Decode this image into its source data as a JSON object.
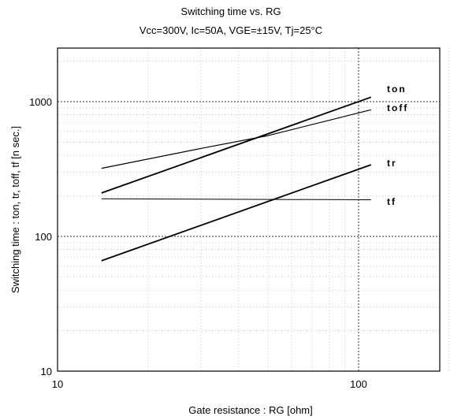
{
  "chart_data": {
    "type": "line",
    "title": "Switching time  vs.  RG",
    "subtitle": "Vcc=300V, Ic=50A, VGE=±15V, Tj=25°C",
    "xlabel": "Gate  resistance  :  RG [ohm]",
    "ylabel": "Switching  time  :  ton, tr, toff, tf  [n sec.]",
    "x_scale": "log",
    "y_scale": "log",
    "xlim": [
      10,
      200
    ],
    "ylim": [
      10,
      2000
    ],
    "x_ticks": [
      10,
      100
    ],
    "x_tick_labels": [
      "10",
      "100"
    ],
    "y_ticks": [
      10,
      100,
      1000
    ],
    "y_tick_labels": [
      "10",
      "100",
      "1000"
    ],
    "grid": true,
    "series": [
      {
        "name": "ton",
        "x": [
          14,
          110
        ],
        "y": [
          210,
          1080
        ]
      },
      {
        "name": "toff",
        "x": [
          14,
          30,
          50,
          110
        ],
        "y": [
          320,
          450,
          560,
          870
        ]
      },
      {
        "name": "tr",
        "x": [
          14,
          110
        ],
        "y": [
          66,
          340
        ]
      },
      {
        "name": "tf",
        "x": [
          14,
          110
        ],
        "y": [
          190,
          187
        ]
      }
    ]
  }
}
